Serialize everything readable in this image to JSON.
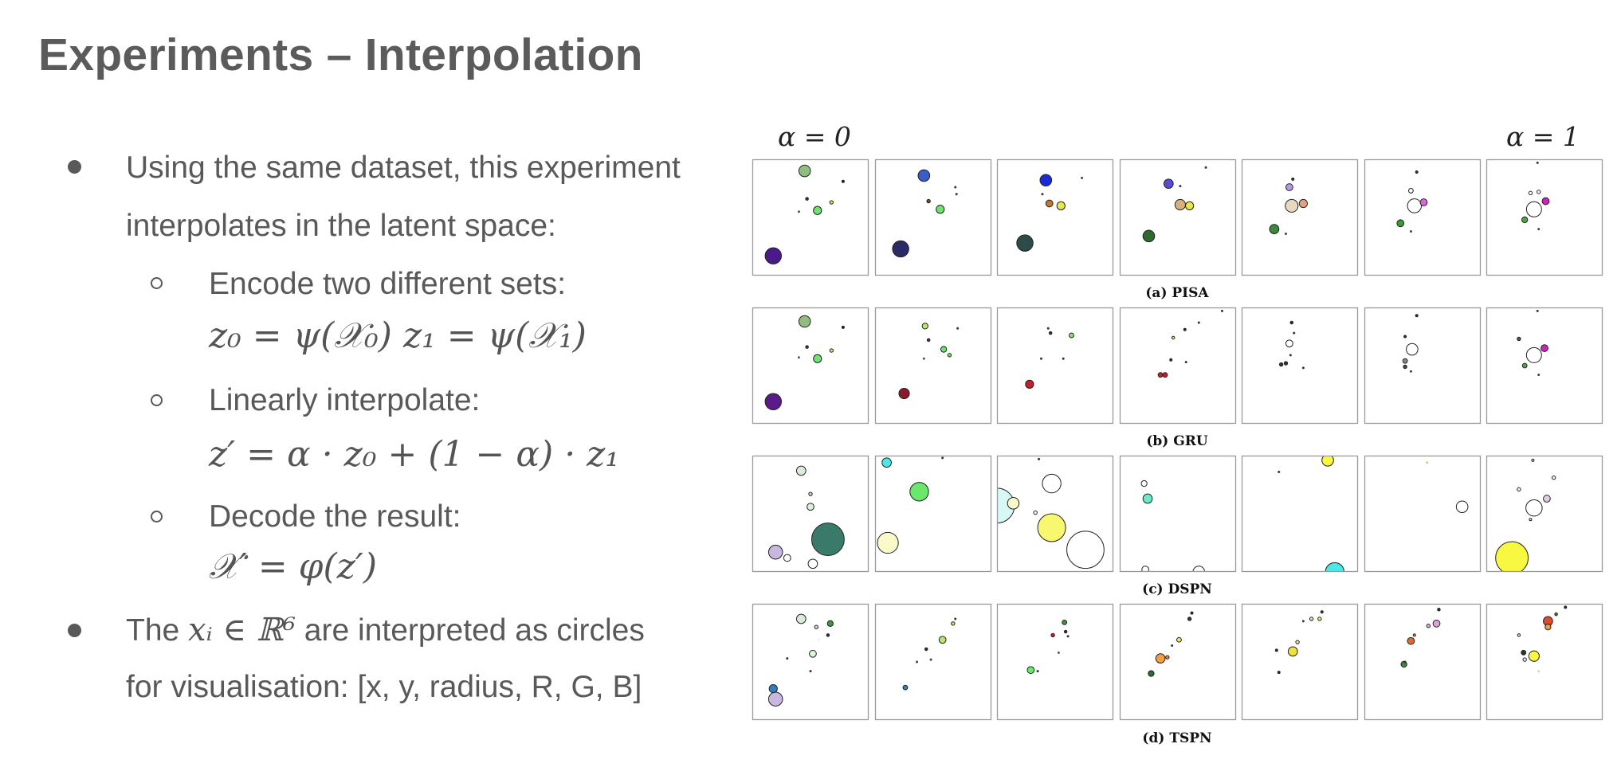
{
  "slide": {
    "title": "Experiments – Interpolation"
  },
  "bullets": {
    "b1_line1": "Using the same dataset, this experiment",
    "b1_line2": "interpolates in the latent space:",
    "sub1": "Encode two different sets:",
    "sub1_math": "z₀ = ψ(𝒳₀)     z₁ = ψ(𝒳₁)",
    "sub2": "Linearly interpolate:",
    "sub2_math": "z′ = α · z₀ + (1 − α) · z₁",
    "sub3": "Decode the result:",
    "sub3_math": "𝒳′ = φ(z′)",
    "b2_pre": "The ",
    "b2_math": "xᵢ ∈ ℝ⁶",
    "b2_post": " are interpreted as circles",
    "b2_line2": "for visualisation: [x, y, radius, R, G, B]"
  },
  "figure": {
    "alpha_left": "α = 0",
    "alpha_right": "α = 1",
    "captions": [
      "(a) PISA",
      "(b) GRU",
      "(c) DSPN",
      "(d) TSPN"
    ],
    "rows": [
      [
        [
          [
            0.45,
            0.1,
            0.05,
            "#8fbf7f"
          ],
          [
            0.18,
            0.83,
            0.07,
            "#4b1a8a"
          ],
          [
            0.56,
            0.44,
            0.035,
            "#6fe36f"
          ],
          [
            0.47,
            0.34,
            0.012,
            "#333"
          ],
          [
            0.68,
            0.37,
            0.015,
            "#c8e86a"
          ],
          [
            0.78,
            0.19,
            0.01,
            "#222"
          ],
          [
            0.4,
            0.45,
            0.006,
            "#555"
          ]
        ],
        [
          [
            0.42,
            0.14,
            0.05,
            "#3a5ec8"
          ],
          [
            0.22,
            0.77,
            0.07,
            "#2b2a68"
          ],
          [
            0.56,
            0.43,
            0.035,
            "#6fe36f"
          ],
          [
            0.46,
            0.36,
            0.015,
            "#7a4a2a"
          ],
          [
            0.69,
            0.24,
            0.006,
            "#333"
          ],
          [
            0.7,
            0.3,
            0.005,
            "#333"
          ]
        ],
        [
          [
            0.42,
            0.18,
            0.05,
            "#1a2ad8"
          ],
          [
            0.24,
            0.72,
            0.07,
            "#2e4a4a"
          ],
          [
            0.55,
            0.4,
            0.035,
            "#e8e84a"
          ],
          [
            0.45,
            0.38,
            0.03,
            "#c07a2a"
          ],
          [
            0.39,
            0.3,
            0.006,
            "#333"
          ],
          [
            0.73,
            0.16,
            0.005,
            "#444"
          ]
        ],
        [
          [
            0.42,
            0.21,
            0.04,
            "#5a4ad8"
          ],
          [
            0.25,
            0.66,
            0.05,
            "#2e6a2e"
          ],
          [
            0.52,
            0.39,
            0.045,
            "#d8b07a"
          ],
          [
            0.6,
            0.4,
            0.035,
            "#e8e84a"
          ],
          [
            0.52,
            0.23,
            0.006,
            "#333"
          ],
          [
            0.74,
            0.07,
            0.006,
            "#333"
          ]
        ],
        [
          [
            0.41,
            0.24,
            0.03,
            "#b49ae8"
          ],
          [
            0.28,
            0.6,
            0.04,
            "#3a8a3a"
          ],
          [
            0.43,
            0.4,
            0.055,
            "#e8d8c0"
          ],
          [
            0.53,
            0.38,
            0.035,
            "#e8a07a"
          ],
          [
            0.44,
            0.17,
            0.01,
            "#333"
          ],
          [
            0.38,
            0.64,
            0.004,
            "#444"
          ]
        ],
        [
          [
            0.43,
            0.4,
            0.06,
            "#ffffff"
          ],
          [
            0.51,
            0.37,
            0.03,
            "#e060e0"
          ],
          [
            0.31,
            0.55,
            0.03,
            "#3a9a3a"
          ],
          [
            0.4,
            0.27,
            0.02,
            "#ffffff"
          ],
          [
            0.45,
            0.11,
            0.01,
            "#333"
          ],
          [
            0.4,
            0.62,
            0.006,
            "#444"
          ]
        ],
        [
          [
            0.41,
            0.43,
            0.065,
            "#ffffff"
          ],
          [
            0.51,
            0.36,
            0.03,
            "#d020c0"
          ],
          [
            0.33,
            0.52,
            0.025,
            "#4aa84a"
          ],
          [
            0.38,
            0.29,
            0.015,
            "#ffffff"
          ],
          [
            0.45,
            0.28,
            0.015,
            "#ffffff"
          ],
          [
            0.44,
            0.03,
            0.008,
            "#333"
          ],
          [
            0.45,
            0.6,
            0.006,
            "#444"
          ]
        ]
      ],
      [
        [
          [
            0.45,
            0.12,
            0.05,
            "#8fbf7f"
          ],
          [
            0.18,
            0.81,
            0.07,
            "#5a1a8a"
          ],
          [
            0.56,
            0.44,
            0.035,
            "#6fe36f"
          ],
          [
            0.47,
            0.34,
            0.012,
            "#5a1a8a"
          ],
          [
            0.68,
            0.37,
            0.015,
            "#c8e86a"
          ],
          [
            0.78,
            0.17,
            0.01,
            "#222"
          ],
          [
            0.4,
            0.43,
            0.006,
            "#555"
          ]
        ],
        [
          [
            0.43,
            0.16,
            0.025,
            "#b8e86a"
          ],
          [
            0.25,
            0.74,
            0.045,
            "#8a1a2a"
          ],
          [
            0.59,
            0.36,
            0.025,
            "#6fe36f"
          ],
          [
            0.46,
            0.28,
            0.012,
            "#5a1a8a"
          ],
          [
            0.64,
            0.41,
            0.015,
            "#6fe36f"
          ],
          [
            0.71,
            0.18,
            0.006,
            "#333"
          ],
          [
            0.42,
            0.44,
            0.006,
            "#555"
          ]
        ],
        [
          [
            0.46,
            0.22,
            0.012,
            "#333"
          ],
          [
            0.64,
            0.24,
            0.02,
            "#8ae86a"
          ],
          [
            0.28,
            0.66,
            0.035,
            "#c8202a"
          ],
          [
            0.57,
            0.44,
            0.008,
            "#333"
          ],
          [
            0.38,
            0.44,
            0.006,
            "#333"
          ],
          [
            0.44,
            0.18,
            0.004,
            "#333"
          ]
        ],
        [
          [
            0.46,
            0.26,
            0.012,
            "#d8e86a"
          ],
          [
            0.35,
            0.58,
            0.02,
            "#c8202a"
          ],
          [
            0.39,
            0.58,
            0.02,
            "#c8202a"
          ],
          [
            0.44,
            0.45,
            0.01,
            "#333"
          ],
          [
            0.68,
            0.13,
            0.008,
            "#333"
          ],
          [
            0.56,
            0.19,
            0.01,
            "#333"
          ],
          [
            0.57,
            0.47,
            0.005,
            "#333"
          ],
          [
            0.88,
            0.03,
            0.005,
            "#333"
          ]
        ],
        [
          [
            0.41,
            0.31,
            0.03,
            "#ffffff"
          ],
          [
            0.43,
            0.13,
            0.012,
            "#333"
          ],
          [
            0.34,
            0.49,
            0.015,
            "#333"
          ],
          [
            0.38,
            0.48,
            0.015,
            "#333"
          ],
          [
            0.42,
            0.41,
            0.008,
            "#333"
          ],
          [
            0.53,
            0.52,
            0.005,
            "#333"
          ],
          [
            0.45,
            0.22,
            0.005,
            "#333"
          ]
        ],
        [
          [
            0.41,
            0.36,
            0.05,
            "#ffffff"
          ],
          [
            0.35,
            0.46,
            0.02,
            "#888"
          ],
          [
            0.35,
            0.51,
            0.015,
            "#444"
          ],
          [
            0.45,
            0.07,
            0.01,
            "#333"
          ],
          [
            0.35,
            0.25,
            0.01,
            "#333"
          ],
          [
            0.4,
            0.55,
            0.005,
            "#444"
          ]
        ],
        [
          [
            0.41,
            0.41,
            0.065,
            "#ffffff"
          ],
          [
            0.5,
            0.35,
            0.03,
            "#d020c0"
          ],
          [
            0.33,
            0.5,
            0.02,
            "#4aa84a"
          ],
          [
            0.28,
            0.27,
            0.015,
            "#555"
          ],
          [
            0.44,
            0.03,
            0.008,
            "#333"
          ],
          [
            0.45,
            0.58,
            0.006,
            "#444"
          ]
        ]
      ],
      [
        [
          [
            0.42,
            0.13,
            0.04,
            "#d8ecd8"
          ],
          [
            0.2,
            0.83,
            0.06,
            "#c8b8e0"
          ],
          [
            0.65,
            0.72,
            0.14,
            "#3a7a6a"
          ],
          [
            0.5,
            0.44,
            0.03,
            "#d8f0d8"
          ],
          [
            0.5,
            0.33,
            0.015,
            "#e8c8e8"
          ],
          [
            0.52,
            0.93,
            0.04,
            "#ffffff"
          ],
          [
            0.3,
            0.88,
            0.03,
            "#ffffff"
          ]
        ],
        [
          [
            0.1,
            0.06,
            0.04,
            "#4ae8e8"
          ],
          [
            0.38,
            0.31,
            0.08,
            "#6ae86a"
          ],
          [
            0.11,
            0.75,
            0.09,
            "#fafac8"
          ],
          [
            0.58,
            0.02,
            0.005,
            "#333"
          ]
        ],
        [
          [
            0.0,
            0.43,
            0.15,
            "#d8f8f8"
          ],
          [
            0.47,
            0.24,
            0.08,
            "#ffffff"
          ],
          [
            0.47,
            0.62,
            0.12,
            "#f8f870"
          ],
          [
            0.76,
            0.81,
            0.16,
            "#ffffff"
          ],
          [
            0.14,
            0.41,
            0.05,
            "#fafac8"
          ],
          [
            0.33,
            0.49,
            0.015,
            "#ffffff"
          ],
          [
            0.36,
            0.03,
            0.005,
            "#333"
          ]
        ],
        [
          [
            0.21,
            0.24,
            0.025,
            "#ffffff"
          ],
          [
            0.24,
            0.37,
            0.04,
            "#6ae8c8"
          ],
          [
            0.22,
            0.98,
            0.03,
            "#ffffff"
          ],
          [
            0.68,
            1.0,
            0.05,
            "#ffffff"
          ]
        ],
        [
          [
            0.74,
            0.04,
            0.05,
            "#f8f840"
          ],
          [
            0.8,
            1.0,
            0.08,
            "#4ae8e8"
          ],
          [
            0.32,
            0.14,
            0.008,
            "#333"
          ]
        ],
        [
          [
            0.84,
            0.44,
            0.05,
            "#ffffff"
          ],
          [
            0.54,
            0.06,
            0.008,
            "#b8d860"
          ]
        ],
        [
          [
            0.22,
            0.88,
            0.14,
            "#f8f840"
          ],
          [
            0.41,
            0.45,
            0.07,
            "#ffffff"
          ],
          [
            0.52,
            0.37,
            0.03,
            "#e8c8e8"
          ],
          [
            0.58,
            0.19,
            0.015,
            "#f0f0f0"
          ],
          [
            0.28,
            0.29,
            0.015,
            "#f0f0f0"
          ],
          [
            0.4,
            0.04,
            0.01,
            "#e8d8e8"
          ],
          [
            0.38,
            0.55,
            0.01,
            "#e8d8e8"
          ]
        ]
      ],
      [
        [
          [
            0.42,
            0.13,
            0.04,
            "#d8ecd8"
          ],
          [
            0.2,
            0.82,
            0.06,
            "#c8b8e0"
          ],
          [
            0.67,
            0.17,
            0.025,
            "#3a9a3a"
          ],
          [
            0.18,
            0.73,
            0.035,
            "#3a7ab8"
          ],
          [
            0.52,
            0.43,
            0.03,
            "#d8f8d8"
          ],
          [
            0.65,
            0.27,
            0.012,
            "#333"
          ],
          [
            0.55,
            0.2,
            0.015,
            "#e8c8e8"
          ],
          [
            0.3,
            0.47,
            0.008,
            "#333"
          ],
          [
            0.5,
            0.58,
            0.006,
            "#333"
          ],
          [
            0.57,
            0.31,
            0.008,
            "#eee"
          ]
        ],
        [
          [
            0.58,
            0.31,
            0.03,
            "#b8e86a"
          ],
          [
            0.26,
            0.72,
            0.02,
            "#3a7ab8"
          ],
          [
            0.44,
            0.39,
            0.012,
            "#333"
          ],
          [
            0.67,
            0.17,
            0.015,
            "#b8e86a"
          ],
          [
            0.69,
            0.13,
            0.006,
            "#333"
          ],
          [
            0.36,
            0.5,
            0.005,
            "#444"
          ],
          [
            0.48,
            0.48,
            0.005,
            "#444"
          ]
        ],
        [
          [
            0.58,
            0.16,
            0.02,
            "#3a9a3a"
          ],
          [
            0.48,
            0.27,
            0.015,
            "#c8202a"
          ],
          [
            0.29,
            0.57,
            0.03,
            "#6ae86a"
          ],
          [
            0.59,
            0.24,
            0.012,
            "#333"
          ],
          [
            0.53,
            0.42,
            0.008,
            "#555"
          ],
          [
            0.61,
            0.28,
            0.006,
            "#333"
          ],
          [
            0.35,
            0.58,
            0.004,
            "#333"
          ]
        ],
        [
          [
            0.35,
            0.47,
            0.04,
            "#f0a040"
          ],
          [
            0.27,
            0.6,
            0.025,
            "#2a6a3a"
          ],
          [
            0.41,
            0.46,
            0.015,
            "#e88a40"
          ],
          [
            0.51,
            0.31,
            0.02,
            "#e8e870"
          ],
          [
            0.6,
            0.13,
            0.015,
            "#333"
          ],
          [
            0.62,
            0.08,
            0.01,
            "#333"
          ],
          [
            0.45,
            0.36,
            0.005,
            "#333"
          ]
        ],
        [
          [
            0.44,
            0.41,
            0.04,
            "#f0e040"
          ],
          [
            0.48,
            0.33,
            0.015,
            "#e8e8b8"
          ],
          [
            0.3,
            0.4,
            0.01,
            "#333"
          ],
          [
            0.32,
            0.59,
            0.01,
            "#333"
          ],
          [
            0.6,
            0.13,
            0.015,
            "#e8d8a8"
          ],
          [
            0.67,
            0.13,
            0.015,
            "#e8e870"
          ],
          [
            0.69,
            0.07,
            0.01,
            "#333"
          ],
          [
            0.53,
            0.15,
            0.006,
            "#333"
          ]
        ],
        [
          [
            0.4,
            0.32,
            0.03,
            "#e06a2a"
          ],
          [
            0.34,
            0.52,
            0.025,
            "#3a8a3a"
          ],
          [
            0.62,
            0.17,
            0.03,
            "#e0a0e0"
          ],
          [
            0.55,
            0.19,
            0.015,
            "#e8b0c8"
          ],
          [
            0.64,
            0.05,
            0.012,
            "#333"
          ],
          [
            0.43,
            0.27,
            0.01,
            "#e8a040"
          ],
          [
            0.35,
            0.5,
            0.005,
            "#333"
          ]
        ],
        [
          [
            0.53,
            0.15,
            0.04,
            "#e04a2a"
          ],
          [
            0.41,
            0.45,
            0.045,
            "#f8f840"
          ],
          [
            0.53,
            0.2,
            0.025,
            "#e8a040"
          ],
          [
            0.32,
            0.42,
            0.02,
            "#333"
          ],
          [
            0.6,
            0.09,
            0.012,
            "#3a8a3a"
          ],
          [
            0.68,
            0.03,
            0.01,
            "#333"
          ],
          [
            0.33,
            0.48,
            0.015,
            "#eee"
          ],
          [
            0.28,
            0.27,
            0.012,
            "#e8d8e8"
          ],
          [
            0.45,
            0.58,
            0.005,
            "#e8c8e8"
          ]
        ]
      ]
    ]
  }
}
